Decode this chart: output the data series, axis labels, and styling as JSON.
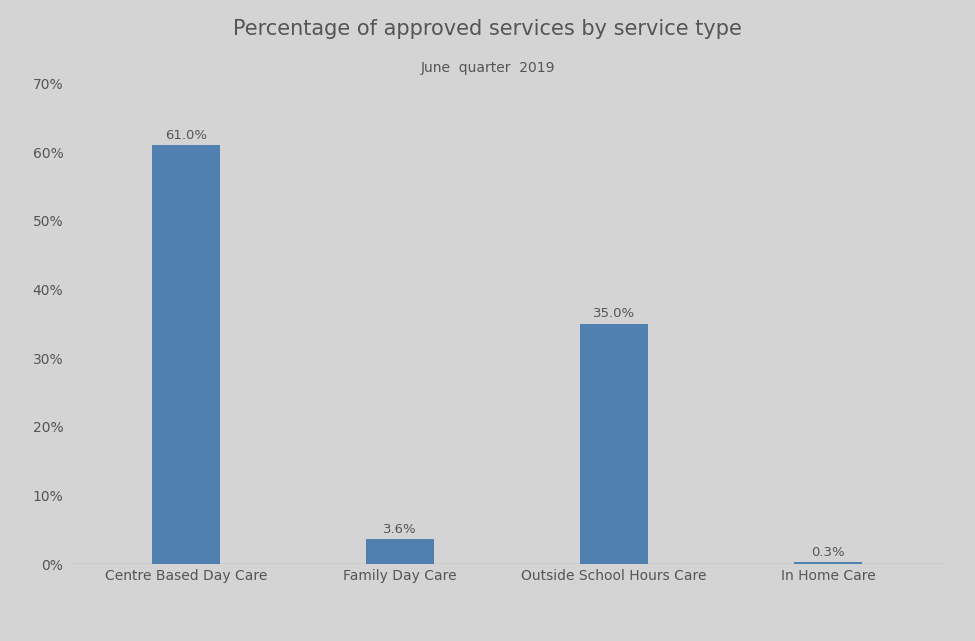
{
  "title": "Percentage of approved services by service type",
  "subtitle": "June  quarter  2019",
  "categories": [
    "Centre Based Day Care",
    "Family Day Care",
    "Outside School Hours Care",
    "In Home Care"
  ],
  "values": [
    61.0,
    3.6,
    35.0,
    0.3
  ],
  "bar_color": "#5080b0",
  "background_color": "#d4d4d4",
  "text_color": "#555555",
  "ylim": [
    0,
    70
  ],
  "yticks": [
    0,
    10,
    20,
    30,
    40,
    50,
    60,
    70
  ],
  "title_fontsize": 15,
  "subtitle_fontsize": 10,
  "tick_label_fontsize": 10,
  "annotation_fontsize": 9.5,
  "bar_width": 0.32
}
